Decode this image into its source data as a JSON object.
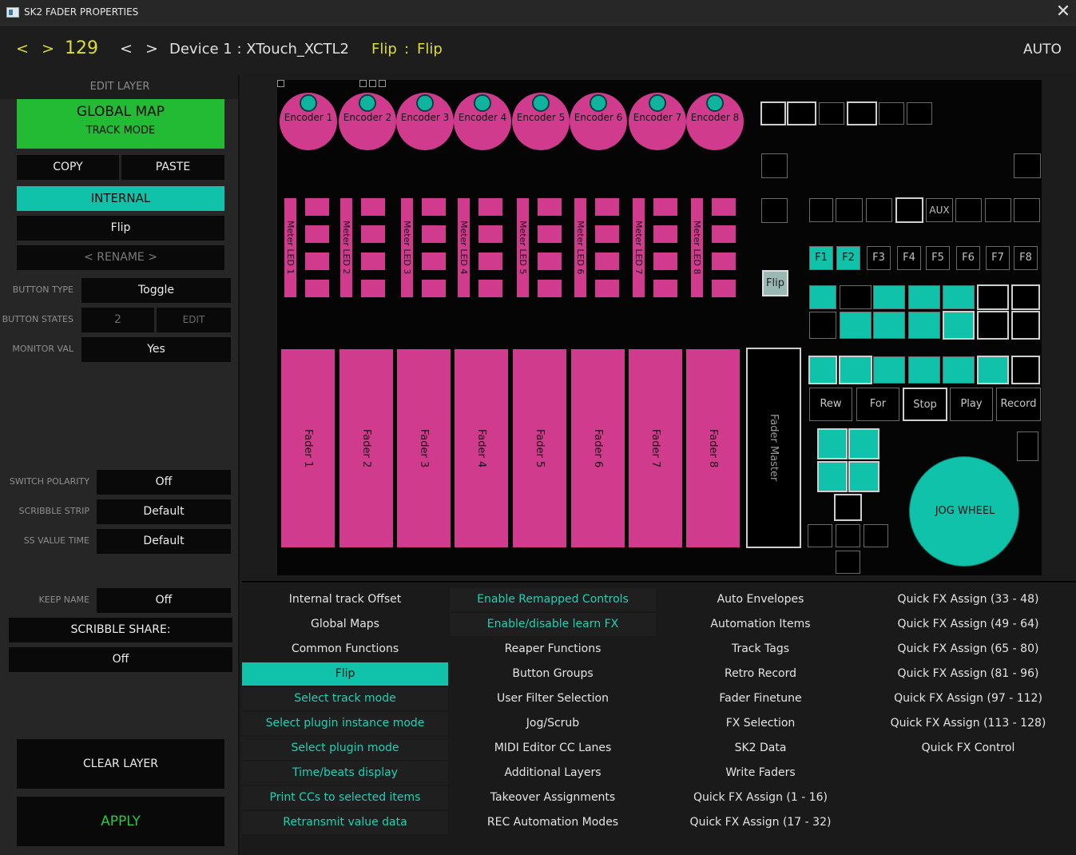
{
  "window": {
    "title": "SK2 FADER PROPERTIES",
    "close": "✕"
  },
  "header": {
    "prev": "<",
    "next": ">",
    "number": "129",
    "dev_prev": "<",
    "dev_next": ">",
    "device": "Device 1 : XTouch_XCTL2",
    "control_a": "Flip",
    "sep": ":",
    "control_b": "Flip",
    "mode": "AUTO"
  },
  "sidebar": {
    "edit_layer": "EDIT LAYER",
    "global_map": "GLOBAL MAP",
    "track_mode": "TRACK MODE",
    "copy": "COPY",
    "paste": "PASTE",
    "internal": "INTERNAL",
    "name": "Flip",
    "rename": "< RENAME >",
    "button_type_label": "BUTTON TYPE",
    "button_type": "Toggle",
    "button_states_label": "BUTTON STATES",
    "button_states": "2",
    "button_states_edit": "EDIT",
    "monitor_val_label": "MONITOR VAL",
    "monitor_val": "Yes",
    "switch_polarity_label": "SWITCH POLARITY",
    "switch_polarity": "Off",
    "scribble_strip_label": "SCRIBBLE STRIP",
    "scribble_strip": "Default",
    "ss_value_time_label": "SS VALUE TIME",
    "ss_value_time": "Default",
    "keep_name_label": "KEEP NAME",
    "keep_name": "Off",
    "scribble_share_label": "SCRIBBLE SHARE:",
    "scribble_share": "Off",
    "clear_layer": "CLEAR LAYER",
    "apply": "APPLY"
  },
  "board": {
    "encoders": [
      "Encoder 1",
      "Encoder 2",
      "Encoder 3",
      "Encoder 4",
      "Encoder 5",
      "Encoder 6",
      "Encoder 7",
      "Encoder 8"
    ],
    "meters": [
      "Meter LED 1",
      "Meter LED 2",
      "Meter LED 3",
      "Meter LED 4",
      "Meter LED 5",
      "Meter LED 6",
      "Meter LED 7",
      "Meter LED 8"
    ],
    "faders": [
      "Fader 1",
      "Fader 2",
      "Fader 3",
      "Fader 4",
      "Fader 5",
      "Fader 6",
      "Fader 7",
      "Fader 8"
    ],
    "fader_master": "Fader Master",
    "flip": "Flip",
    "aux": "AUX",
    "fkeys": [
      "F1",
      "F2",
      "F3",
      "F4",
      "F5",
      "F6",
      "F7",
      "F8"
    ],
    "transport": [
      "Rew",
      "For",
      "Stop",
      "Play",
      "Record"
    ],
    "jog": "JOG WHEEL",
    "colors": {
      "pink": "#d03b8e",
      "teal": "#10c2a9",
      "green": "#22bb33"
    }
  },
  "menu": {
    "col1": [
      "Internal track Offset",
      "Global Maps",
      "Common Functions",
      "Flip",
      "Select track mode",
      "Select plugin instance mode",
      "Select plugin mode",
      "Time/beats display",
      "Print CCs to selected items",
      "Retransmit value data"
    ],
    "col2": [
      "Enable Remapped Controls",
      "Enable/disable learn FX",
      "Reaper Functions",
      "Button Groups",
      "User Filter Selection",
      "Jog/Scrub",
      "MIDI Editor CC Lanes",
      "Additional Layers",
      "Takeover Assignments",
      "REC Automation Modes"
    ],
    "col3": [
      "Auto Envelopes",
      "Automation Items",
      "Track Tags",
      "Retro Record",
      "Fader Finetune",
      "FX Selection",
      "SK2 Data",
      "Write Faders",
      "Quick FX Assign (1 - 16)",
      "Quick FX Assign (17 - 32)"
    ],
    "col4": [
      "Quick FX Assign (33 - 48)",
      "Quick FX Assign (49 - 64)",
      "Quick FX Assign (65 - 80)",
      "Quick FX Assign (81 - 96)",
      "Quick FX Assign (97 - 112)",
      "Quick FX Assign (113 - 128)",
      "Quick FX Control"
    ]
  }
}
